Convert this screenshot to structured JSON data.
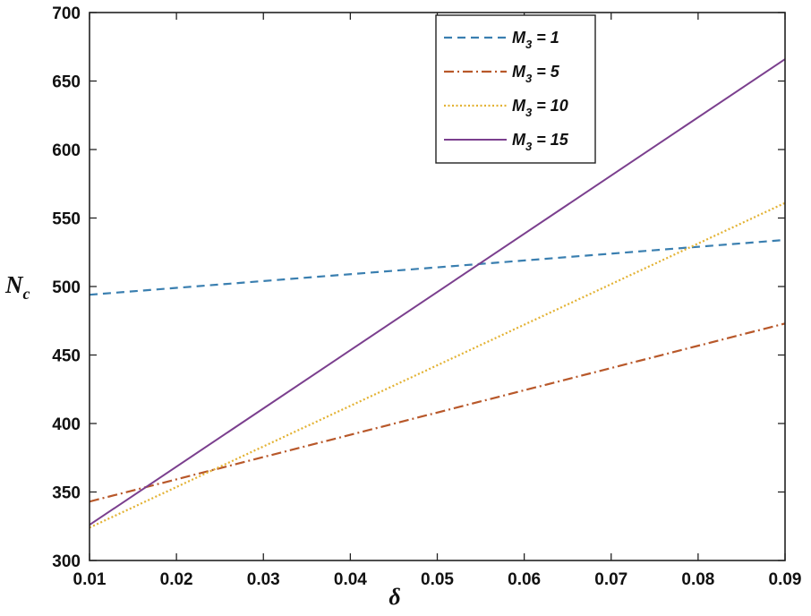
{
  "chart_data": {
    "type": "line",
    "xlabel": "δ",
    "ylabel": {
      "main": "N",
      "sub": "c"
    },
    "xlim": [
      0.01,
      0.09
    ],
    "ylim": [
      300,
      700
    ],
    "xticks": [
      0.01,
      0.02,
      0.03,
      0.04,
      0.05,
      0.06,
      0.07,
      0.08,
      0.09
    ],
    "xtick_labels": [
      "0.01",
      "0.02",
      "0.03",
      "0.04",
      "0.05",
      "0.06",
      "0.07",
      "0.08",
      "0.09"
    ],
    "yticks": [
      300,
      350,
      400,
      450,
      500,
      550,
      600,
      650,
      700
    ],
    "ytick_labels": [
      "300",
      "350",
      "400",
      "450",
      "500",
      "550",
      "600",
      "650",
      "700"
    ],
    "grid": false,
    "legend_position": "top-right",
    "series": [
      {
        "name": "M_3 = 1",
        "legend": {
          "main": "M",
          "sub": "3",
          "rest": " = 1"
        },
        "color": "#3a7fb0",
        "style": "dashed",
        "x": [
          0.01,
          0.09
        ],
        "y": [
          494,
          534
        ]
      },
      {
        "name": "M_3 = 5",
        "legend": {
          "main": "M",
          "sub": "3",
          "rest": " = 5"
        },
        "color": "#b8582a",
        "style": "dashdot",
        "x": [
          0.01,
          0.09
        ],
        "y": [
          343,
          473
        ]
      },
      {
        "name": "M_3 = 10",
        "legend": {
          "main": "M",
          "sub": "3",
          "rest": " = 10"
        },
        "color": "#e3b233",
        "style": "dotted",
        "x": [
          0.01,
          0.09
        ],
        "y": [
          324,
          561
        ]
      },
      {
        "name": "M_3 = 15",
        "legend": {
          "main": "M",
          "sub": "3",
          "rest": " = 15"
        },
        "color": "#7b3f8e",
        "style": "solid",
        "x": [
          0.01,
          0.09
        ],
        "y": [
          326,
          666
        ]
      }
    ]
  }
}
